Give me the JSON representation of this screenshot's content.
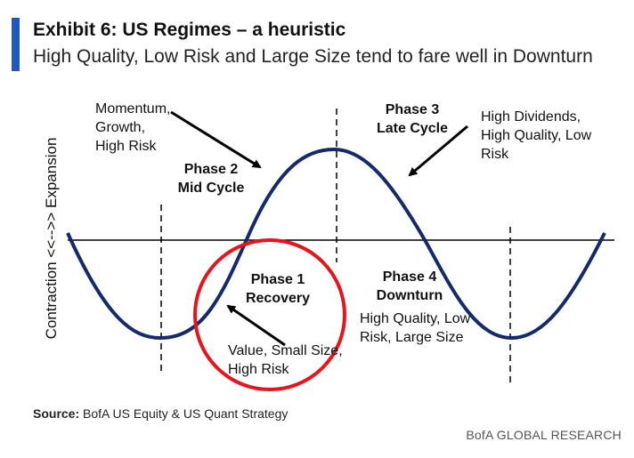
{
  "header": {
    "title": "Exhibit 6: US Regimes – a heuristic",
    "subtitle": "High Quality, Low Risk and Large Size tend to fare well in Downturn"
  },
  "diagram": {
    "y_axis_label": "Contraction <<-->> Expansion",
    "phases": {
      "phase1": {
        "name": "Phase 1",
        "label": "Recovery",
        "styles": "Value, Small Size, High Risk"
      },
      "phase2": {
        "name": "Phase 2",
        "label": "Mid Cycle",
        "styles_line1": "Momentum,",
        "styles_line2": "Growth,",
        "styles_line3": "High Risk"
      },
      "phase3": {
        "name": "Phase 3",
        "label": "Late Cycle",
        "styles_line1": "High Dividends,",
        "styles_line2": "High Quality, Low",
        "styles_line3": "Risk"
      },
      "phase4": {
        "name": "Phase 4",
        "label": "Downturn",
        "styles_line1": "High Quality, Low",
        "styles_line2": "Risk, Large Size"
      }
    },
    "colors": {
      "curve": "#142a6b",
      "circle": "#e8141b",
      "accent": "#1f57c3"
    }
  },
  "footer": {
    "source_label": "Source:",
    "source_text": "BofA US Equity & US Quant Strategy",
    "brand": "BofA GLOBAL RESEARCH"
  }
}
